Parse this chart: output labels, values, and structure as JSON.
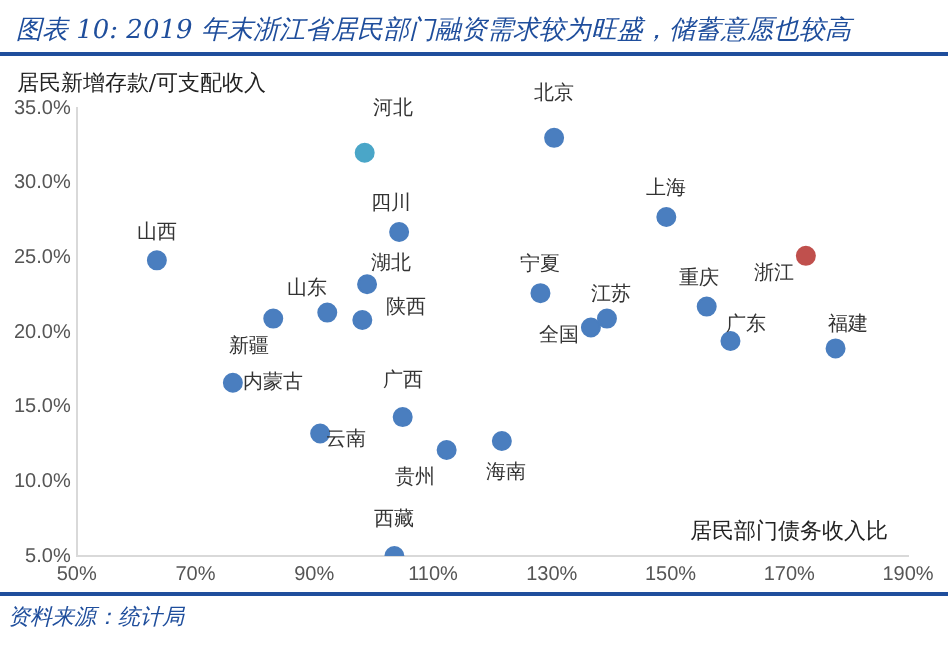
{
  "chart_data": {
    "type": "scatter",
    "title": "图表 10: 2019 年末浙江省居民部门融资需求较为旺盛，储蓄意愿也较高",
    "xlabel": "居民部门债务收入比",
    "ylabel": "居民新增存款/可支配收入",
    "annotations": [
      "资料来源：统计局"
    ],
    "xlim": [
      50,
      190
    ],
    "xticks": [
      {
        "value": 50,
        "label": "50%"
      },
      {
        "value": 70,
        "label": "70%"
      },
      {
        "value": 90,
        "label": "90%"
      },
      {
        "value": 110,
        "label": "110%"
      },
      {
        "value": 130,
        "label": "130%"
      },
      {
        "value": 150,
        "label": "150%"
      },
      {
        "value": 170,
        "label": "170%"
      },
      {
        "value": 190,
        "label": "190%"
      }
    ],
    "ylim": [
      5,
      35
    ],
    "yticks": [
      {
        "value": 5,
        "label": "5.0%"
      },
      {
        "value": 10,
        "label": "10.0%"
      },
      {
        "value": 15,
        "label": "15.0%"
      },
      {
        "value": 20,
        "label": "20.0%"
      },
      {
        "value": 25,
        "label": "25.0%"
      },
      {
        "value": 30,
        "label": "30.0%"
      },
      {
        "value": 35,
        "label": "35.0%"
      }
    ],
    "grid": false,
    "legend": false,
    "marker": "circle",
    "series": [
      {
        "name": "山西",
        "color": "#4a7ebf",
        "x": [
          63.5
        ],
        "values": [
          24.8
        ]
      },
      {
        "name": "河北",
        "color": "#4aa6c8",
        "x": [
          98.5
        ],
        "values": [
          32.0
        ]
      },
      {
        "name": "北京",
        "color": "#4a7ebf",
        "x": [
          130.4
        ],
        "values": [
          33.0
        ]
      },
      {
        "name": "上海",
        "color": "#4a7ebf",
        "x": [
          149.3
        ],
        "values": [
          27.7
        ]
      },
      {
        "name": "四川",
        "color": "#4a7ebf",
        "x": [
          104.3
        ],
        "values": [
          26.7
        ]
      },
      {
        "name": "山东",
        "color": "#4a7ebf",
        "x": [
          92.2
        ],
        "values": [
          21.3
        ]
      },
      {
        "name": "湖北",
        "color": "#4a7ebf",
        "x": [
          98.9
        ],
        "values": [
          23.2
        ]
      },
      {
        "name": "陕西",
        "color": "#4a7ebf",
        "x": [
          98.1
        ],
        "values": [
          20.8
        ]
      },
      {
        "name": "新疆",
        "color": "#4a7ebf",
        "x": [
          83.1
        ],
        "values": [
          20.9
        ]
      },
      {
        "name": "内蒙古",
        "color": "#4a7ebf",
        "x": [
          76.3
        ],
        "values": [
          16.6
        ]
      },
      {
        "name": "云南",
        "color": "#4a7ebf",
        "x": [
          91.0
        ],
        "values": [
          13.2
        ]
      },
      {
        "name": "广西",
        "color": "#4a7ebf",
        "x": [
          104.9
        ],
        "values": [
          14.3
        ]
      },
      {
        "name": "贵州",
        "color": "#4a7ebf",
        "x": [
          112.3
        ],
        "values": [
          12.1
        ]
      },
      {
        "name": "西藏",
        "color": "#4a7ebf",
        "x": [
          103.5
        ],
        "values": [
          5.0
        ]
      },
      {
        "name": "海南",
        "color": "#4a7ebf",
        "x": [
          121.6
        ],
        "values": [
          12.7
        ]
      },
      {
        "name": "宁夏",
        "color": "#4a7ebf",
        "x": [
          128.1
        ],
        "values": [
          22.6
        ]
      },
      {
        "name": "江苏",
        "color": "#4a7ebf",
        "x": [
          139.3
        ],
        "values": [
          20.9
        ]
      },
      {
        "name": "全国",
        "color": "#4a7ebf",
        "x": [
          136.6
        ],
        "values": [
          20.3
        ]
      },
      {
        "name": "重庆",
        "color": "#4a7ebf",
        "x": [
          156.1
        ],
        "values": [
          21.7
        ]
      },
      {
        "name": "广东",
        "color": "#4a7ebf",
        "x": [
          160.1
        ],
        "values": [
          19.4
        ]
      },
      {
        "name": "浙江",
        "color": "#c0504d",
        "x": [
          172.8
        ],
        "values": [
          25.1
        ]
      },
      {
        "name": "福建",
        "color": "#4a7ebf",
        "x": [
          177.8
        ],
        "values": [
          18.9
        ]
      }
    ]
  }
}
